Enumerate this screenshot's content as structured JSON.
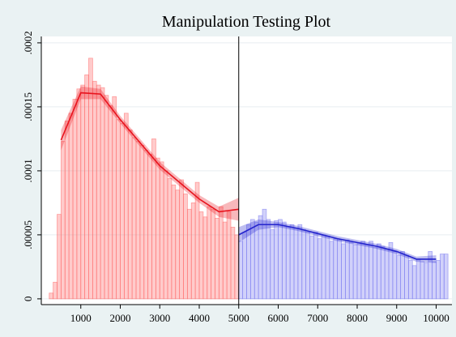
{
  "chart_data": {
    "type": "manipulation",
    "title": "Manipulation Testing Plot",
    "xlim": [
      0,
      10400
    ],
    "ylim": [
      -4.5e-06,
      0.000205
    ],
    "xticks": [
      1000,
      2000,
      3000,
      4000,
      5000,
      6000,
      7000,
      8000,
      9000,
      10000
    ],
    "yticks": [
      0,
      {
        "value": 5e-05,
        "label": ".00005"
      },
      {
        "value": 0.0001,
        "label": ".0001"
      },
      {
        "value": 0.00015,
        "label": ".00015"
      },
      {
        "value": 0.0002,
        "label": ".0002"
      }
    ],
    "grid": true,
    "cutoff": 5000,
    "histograms": [
      {
        "color": "#ff6b6b",
        "bins": [
          200,
          300,
          400,
          500,
          600,
          700,
          800,
          900,
          1000,
          1100,
          1200,
          1300,
          1400,
          1500,
          1600,
          1700,
          1800,
          1900,
          2000,
          2100,
          2200,
          2300,
          2400,
          2500,
          2600,
          2700,
          2800,
          2900,
          3000,
          3100,
          3200,
          3300,
          3400,
          3500,
          3600,
          3700,
          3800,
          3900,
          4000,
          4100,
          4200,
          4300,
          4400,
          4500,
          4600,
          4700,
          4800,
          4900,
          5000
        ],
        "values": [
          4.5e-06,
          1.3e-05,
          6.6e-05,
          0.000123,
          0.000139,
          0.000145,
          0.000156,
          0.000164,
          0.000167,
          0.000175,
          0.000188,
          0.00017,
          0.000167,
          0.000165,
          0.000159,
          0.000151,
          0.000158,
          0.00014,
          0.000137,
          0.000145,
          0.000132,
          0.000126,
          0.000123,
          0.00012,
          0.000116,
          0.000113,
          0.000125,
          0.00011,
          0.000107,
          0.0001,
          9.4e-05,
          8.9e-05,
          8.5e-05,
          9.3e-05,
          8.2e-05,
          7e-05,
          7.5e-05,
          9.1e-05,
          6.8e-05,
          6.4e-05,
          7.2e-05,
          7e-05,
          6.3e-05,
          7.2e-05,
          6e-05,
          6.8e-05,
          5.6e-05,
          5e-05
        ]
      },
      {
        "color": "#7b7bf0",
        "bins": [
          5000,
          5100,
          5200,
          5300,
          5400,
          5500,
          5600,
          5700,
          5800,
          5900,
          6000,
          6100,
          6200,
          6300,
          6400,
          6500,
          6600,
          6700,
          6800,
          6900,
          7000,
          7100,
          7200,
          7300,
          7400,
          7500,
          7600,
          7700,
          7800,
          7900,
          8000,
          8100,
          8200,
          8300,
          8400,
          8500,
          8600,
          8700,
          8800,
          8900,
          9000,
          9100,
          9200,
          9300,
          9400,
          9500,
          9600,
          9700,
          9800,
          9900,
          10000,
          10100,
          10200,
          10300
        ],
        "values": [
          4.5e-05,
          5.2e-05,
          5.8e-05,
          6.2e-05,
          6e-05,
          6.5e-05,
          7e-05,
          6.2e-05,
          5.4e-05,
          6.1e-05,
          6.2e-05,
          6e-05,
          5.6e-05,
          5.8e-05,
          5.5e-05,
          5.8e-05,
          5.4e-05,
          5.2e-05,
          4.9e-05,
          5.2e-05,
          4.7e-05,
          5e-05,
          4.9e-05,
          4.5e-05,
          4.7e-05,
          4.6e-05,
          4.3e-05,
          4.6e-05,
          4.4e-05,
          4.2e-05,
          4.4e-05,
          4.5e-05,
          4.2e-05,
          4.5e-05,
          4e-05,
          4.3e-05,
          4.1e-05,
          3.9e-05,
          4.4e-05,
          3.7e-05,
          3.4e-05,
          3.7e-05,
          3.4e-05,
          3e-05,
          2.6e-05,
          3.1e-05,
          2.9e-05,
          2.8e-05,
          3.7e-05,
          2.9e-05,
          3e-05,
          3.5e-05,
          3.5e-05
        ]
      }
    ],
    "fits": [
      {
        "color": "#e8141e",
        "x": [
          500,
          1000,
          1500,
          2000,
          2500,
          3000,
          3500,
          4000,
          4500,
          5000
        ],
        "values": [
          0.000124,
          0.000161,
          0.00016,
          0.00014,
          0.000122,
          0.000104,
          9.1e-05,
          7.8e-05,
          6.8e-05,
          7e-05
        ],
        "lower": [
          0.000116,
          0.000156,
          0.000156,
          0.000137,
          0.000119,
          0.000101,
          8.8e-05,
          7.5e-05,
          6.4e-05,
          6.1e-05
        ],
        "upper": [
          0.000132,
          0.000166,
          0.000164,
          0.000143,
          0.000125,
          0.000107,
          9.4e-05,
          8.1e-05,
          7.2e-05,
          7.9e-05
        ]
      },
      {
        "color": "#2424cc",
        "x": [
          5000,
          5500,
          6000,
          6500,
          7000,
          7500,
          8000,
          8500,
          9000,
          9500,
          10000
        ],
        "values": [
          5e-05,
          5.8e-05,
          5.8e-05,
          5.5e-05,
          5.1e-05,
          4.7e-05,
          4.4e-05,
          4.1e-05,
          3.7e-05,
          3.1e-05,
          3.1e-05
        ],
        "lower": [
          4.4e-05,
          5.4e-05,
          5.6e-05,
          5.3e-05,
          4.9e-05,
          4.5e-05,
          4.2e-05,
          3.9e-05,
          3.5e-05,
          2.9e-05,
          2.8e-05
        ],
        "upper": [
          5.6e-05,
          6.2e-05,
          6e-05,
          5.7e-05,
          5.3e-05,
          4.9e-05,
          4.6e-05,
          4.3e-05,
          3.9e-05,
          3.3e-05,
          3.4e-05
        ]
      }
    ]
  }
}
